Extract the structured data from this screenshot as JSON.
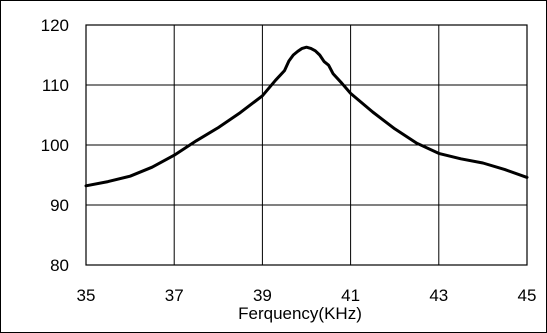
{
  "chart_data": {
    "type": "line",
    "title": "",
    "xlabel": "Ferquency(KHz)",
    "ylabel": "",
    "xlim": [
      35,
      45
    ],
    "ylim": [
      80,
      120
    ],
    "x_ticks": [
      35,
      37,
      39,
      41,
      43,
      45
    ],
    "y_ticks": [
      80,
      90,
      100,
      110,
      120
    ],
    "x_tick_labels": [
      "35",
      "37",
      "39",
      "41",
      "43",
      "45"
    ],
    "y_tick_labels": [
      "80",
      "90",
      "100",
      "110",
      "120"
    ],
    "grid": true,
    "legend": "none",
    "line_color": "#000000",
    "series": [
      {
        "x": [
          35.0,
          35.5,
          36.0,
          36.5,
          37.0,
          37.5,
          38.0,
          38.5,
          39.0,
          39.3,
          39.5,
          39.6,
          39.7,
          39.8,
          39.9,
          40.0,
          40.1,
          40.2,
          40.3,
          40.4,
          40.5,
          40.6,
          40.8,
          41.0,
          41.5,
          42.0,
          42.5,
          43.0,
          43.5,
          44.0,
          44.5,
          45.0
        ],
        "y": [
          93.2,
          93.9,
          94.8,
          96.3,
          98.3,
          100.7,
          102.9,
          105.4,
          108.2,
          110.8,
          112.4,
          114.0,
          115.0,
          115.6,
          116.1,
          116.3,
          116.1,
          115.7,
          115.0,
          113.9,
          113.3,
          111.9,
          110.3,
          108.6,
          105.5,
          102.7,
          100.3,
          98.6,
          97.7,
          97.0,
          95.9,
          94.6
        ]
      }
    ]
  }
}
